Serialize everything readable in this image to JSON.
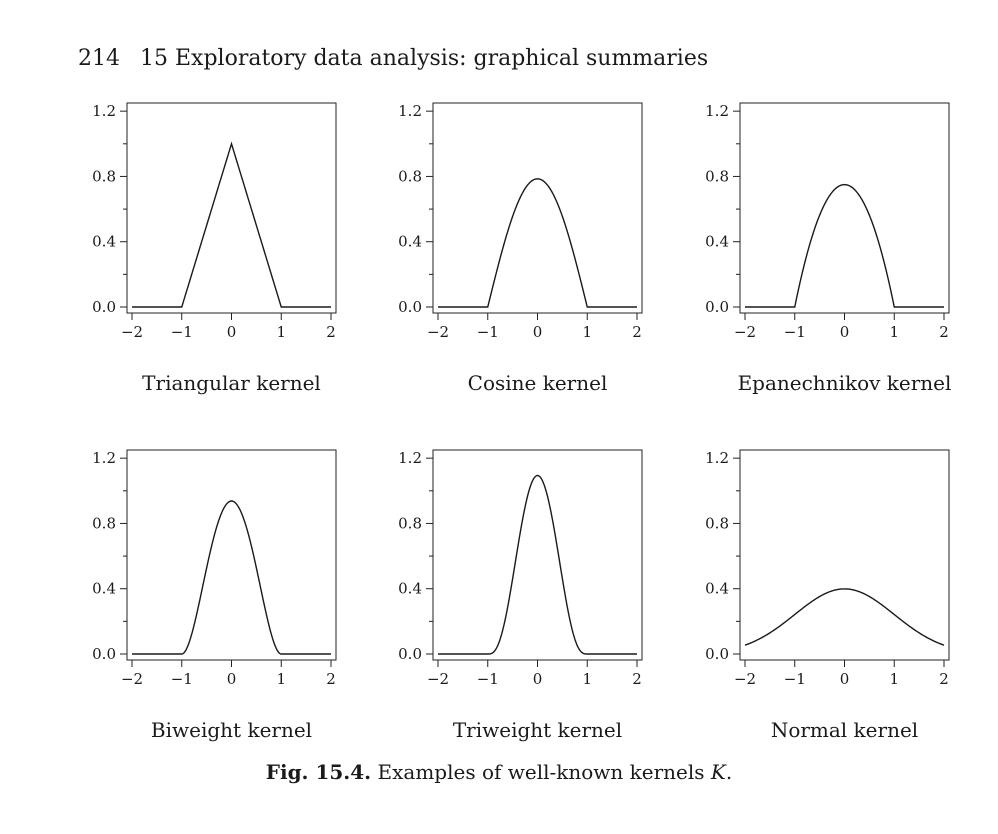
{
  "page": {
    "number": "214",
    "running_head": "15 Exploratory data analysis: graphical summaries"
  },
  "caption": {
    "label": "Fig. 15.4.",
    "text": "Examples of well-known kernels",
    "symbol": "K",
    "end": "."
  },
  "chart_data": [
    {
      "type": "line",
      "kernel": "triangular",
      "xlabel": "Triangular kernel",
      "xlim": [
        -2,
        2
      ],
      "ylim": [
        0,
        1.25
      ],
      "xticks": [
        -2,
        -1,
        0,
        1,
        2
      ],
      "xtick_labels": [
        "−2",
        "−1",
        "0",
        "1",
        "2"
      ],
      "yticks": [
        0,
        0.4,
        0.8,
        1.2
      ],
      "ytick_labels": [
        "0.0",
        "0.4",
        "0.8",
        "1.2"
      ],
      "yminor": [
        0.2,
        0.6,
        1.0
      ]
    },
    {
      "type": "line",
      "kernel": "cosine",
      "xlabel": "Cosine kernel",
      "xlim": [
        -2,
        2
      ],
      "ylim": [
        0,
        1.25
      ],
      "xticks": [
        -2,
        -1,
        0,
        1,
        2
      ],
      "xtick_labels": [
        "−2",
        "−1",
        "0",
        "1",
        "2"
      ],
      "yticks": [
        0,
        0.4,
        0.8,
        1.2
      ],
      "ytick_labels": [
        "0.0",
        "0.4",
        "0.8",
        "1.2"
      ],
      "yminor": [
        0.2,
        0.6,
        1.0
      ]
    },
    {
      "type": "line",
      "kernel": "epanechnikov",
      "xlabel": "Epanechnikov kernel",
      "xlim": [
        -2,
        2
      ],
      "ylim": [
        0,
        1.25
      ],
      "xticks": [
        -2,
        -1,
        0,
        1,
        2
      ],
      "xtick_labels": [
        "−2",
        "−1",
        "0",
        "1",
        "2"
      ],
      "yticks": [
        0,
        0.4,
        0.8,
        1.2
      ],
      "ytick_labels": [
        "0.0",
        "0.4",
        "0.8",
        "1.2"
      ],
      "yminor": [
        0.2,
        0.6,
        1.0
      ]
    },
    {
      "type": "line",
      "kernel": "biweight",
      "xlabel": "Biweight kernel",
      "xlim": [
        -2,
        2
      ],
      "ylim": [
        0,
        1.25
      ],
      "xticks": [
        -2,
        -1,
        0,
        1,
        2
      ],
      "xtick_labels": [
        "−2",
        "−1",
        "0",
        "1",
        "2"
      ],
      "yticks": [
        0,
        0.4,
        0.8,
        1.2
      ],
      "ytick_labels": [
        "0.0",
        "0.4",
        "0.8",
        "1.2"
      ],
      "yminor": [
        0.2,
        0.6,
        1.0
      ]
    },
    {
      "type": "line",
      "kernel": "triweight",
      "xlabel": "Triweight kernel",
      "xlim": [
        -2,
        2
      ],
      "ylim": [
        0,
        1.25
      ],
      "xticks": [
        -2,
        -1,
        0,
        1,
        2
      ],
      "xtick_labels": [
        "−2",
        "−1",
        "0",
        "1",
        "2"
      ],
      "yticks": [
        0,
        0.4,
        0.8,
        1.2
      ],
      "ytick_labels": [
        "0.0",
        "0.4",
        "0.8",
        "1.2"
      ],
      "yminor": [
        0.2,
        0.6,
        1.0
      ]
    },
    {
      "type": "line",
      "kernel": "normal",
      "xlabel": "Normal kernel",
      "xlim": [
        -2,
        2
      ],
      "ylim": [
        0,
        1.25
      ],
      "xticks": [
        -2,
        -1,
        0,
        1,
        2
      ],
      "xtick_labels": [
        "−2",
        "−1",
        "0",
        "1",
        "2"
      ],
      "yticks": [
        0,
        0.4,
        0.8,
        1.2
      ],
      "ytick_labels": [
        "0.0",
        "0.4",
        "0.8",
        "1.2"
      ],
      "yminor": [
        0.2,
        0.6,
        1.0
      ]
    }
  ]
}
